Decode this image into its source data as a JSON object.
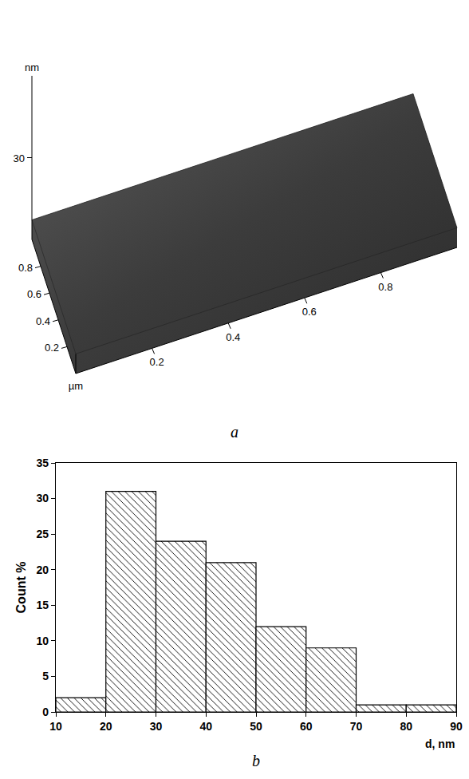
{
  "chart_data": [
    {
      "type": "surface",
      "panel": "a",
      "xlabel": "µm",
      "zlabel": "nm",
      "xlim": [
        0,
        1
      ],
      "ylim": [
        0,
        1
      ],
      "zlim": [
        0,
        60
      ],
      "xticks": [
        0.2,
        0.4,
        0.6,
        0.8
      ],
      "yticks": [
        0.2,
        0.4,
        0.6,
        0.8
      ],
      "zticks": [
        30
      ]
    },
    {
      "type": "histogram",
      "panel": "b",
      "xlabel": "d, nm",
      "ylabel": "Count %",
      "bins": [
        10,
        20,
        30,
        40,
        50,
        60,
        70,
        80,
        90
      ],
      "values": [
        2,
        31,
        24,
        21,
        12,
        9,
        1,
        1
      ],
      "color": "#000000",
      "xlim": [
        10,
        90
      ],
      "ylim": [
        0,
        35
      ],
      "xticks": [
        10,
        20,
        30,
        40,
        50,
        60,
        70,
        80,
        90
      ],
      "yticks": [
        0,
        5,
        10,
        15,
        20,
        25,
        30,
        35
      ]
    }
  ]
}
